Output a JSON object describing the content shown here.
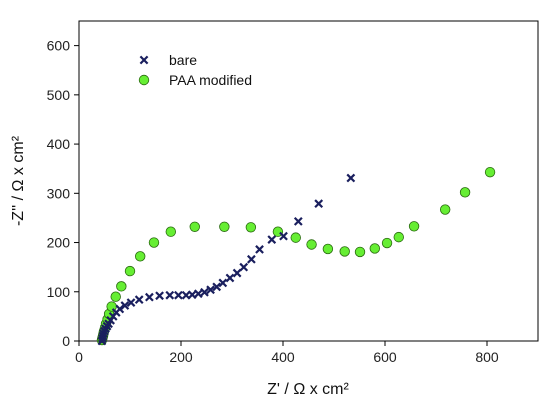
{
  "chart_data": {
    "type": "scatter",
    "title": "",
    "xlabel": "Z' / Ω x cm²",
    "ylabel": "-Z'' / Ω x cm²",
    "xlim": [
      0,
      900
    ],
    "ylim": [
      0,
      650
    ],
    "xticks": [
      0,
      200,
      400,
      600,
      800
    ],
    "yticks": [
      0,
      100,
      200,
      300,
      400,
      500,
      600
    ],
    "grid": false,
    "legend_position": "top-left",
    "series": [
      {
        "name": "bare",
        "marker": "x",
        "color": "#1a1f5e",
        "points": [
          [
            45,
            0
          ],
          [
            46,
            5
          ],
          [
            47,
            10
          ],
          [
            48,
            15
          ],
          [
            50,
            20
          ],
          [
            52,
            25
          ],
          [
            55,
            30
          ],
          [
            58,
            35
          ],
          [
            62,
            42
          ],
          [
            67,
            50
          ],
          [
            73,
            58
          ],
          [
            80,
            65
          ],
          [
            90,
            72
          ],
          [
            102,
            78
          ],
          [
            118,
            84
          ],
          [
            138,
            89
          ],
          [
            158,
            92
          ],
          [
            178,
            93
          ],
          [
            195,
            93
          ],
          [
            210,
            93
          ],
          [
            222,
            94
          ],
          [
            234,
            96
          ],
          [
            246,
            99
          ],
          [
            258,
            104
          ],
          [
            270,
            110
          ],
          [
            282,
            118
          ],
          [
            296,
            128
          ],
          [
            310,
            138
          ],
          [
            323,
            150
          ],
          [
            338,
            166
          ],
          [
            354,
            186
          ],
          [
            378,
            206
          ],
          [
            401,
            213
          ],
          [
            430,
            243
          ],
          [
            470,
            279
          ],
          [
            533,
            331
          ]
        ]
      },
      {
        "name": "PAA modified",
        "marker": "circle",
        "color": "#66ee33",
        "points": [
          [
            45,
            2
          ],
          [
            46,
            6
          ],
          [
            47,
            10
          ],
          [
            48,
            15
          ],
          [
            49,
            20
          ],
          [
            51,
            27
          ],
          [
            53,
            35
          ],
          [
            56,
            44
          ],
          [
            59,
            55
          ],
          [
            64,
            70
          ],
          [
            72,
            90
          ],
          [
            83,
            111
          ],
          [
            100,
            142
          ],
          [
            120,
            172
          ],
          [
            147,
            200
          ],
          [
            180,
            222
          ],
          [
            227,
            232
          ],
          [
            285,
            232
          ],
          [
            337,
            231
          ],
          [
            390,
            222
          ],
          [
            425,
            210
          ],
          [
            456,
            196
          ],
          [
            488,
            187
          ],
          [
            521,
            182
          ],
          [
            551,
            181
          ],
          [
            580,
            188
          ],
          [
            604,
            199
          ],
          [
            627,
            211
          ],
          [
            657,
            233
          ],
          [
            718,
            267
          ],
          [
            757,
            302
          ],
          [
            806,
            343
          ]
        ]
      }
    ]
  }
}
